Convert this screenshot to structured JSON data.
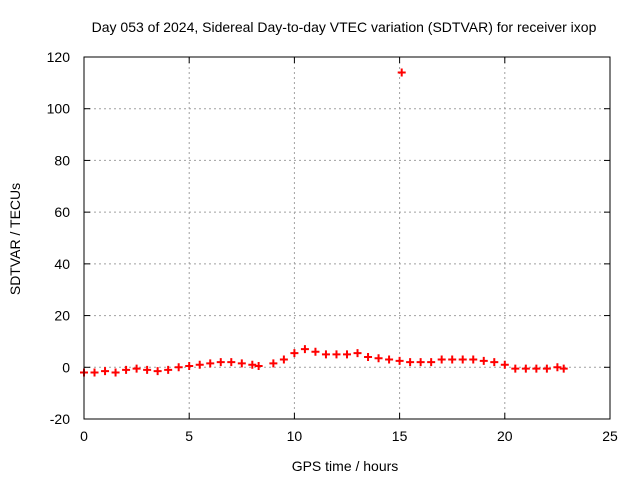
{
  "chart_data": {
    "type": "scatter",
    "title": "Day 053 of 2024, Sidereal Day-to-day VTEC variation (SDTVAR) for receiver ixop",
    "xlabel": "GPS time / hours",
    "ylabel": "SDTVAR / TECUs",
    "xlim": [
      0,
      25
    ],
    "ylim": [
      -20,
      120
    ],
    "xticks": [
      0,
      5,
      10,
      15,
      20,
      25
    ],
    "yticks": [
      -20,
      0,
      20,
      40,
      60,
      80,
      100,
      120
    ],
    "grid": true,
    "marker": "plus",
    "series": [
      {
        "name": "SDTVAR",
        "color": "#ff0000",
        "x": [
          0.0,
          0.5,
          1.0,
          1.5,
          2.0,
          2.5,
          3.0,
          3.5,
          4.0,
          4.5,
          5.0,
          5.5,
          6.0,
          6.5,
          7.0,
          7.5,
          8.0,
          8.3,
          9.0,
          9.5,
          10.0,
          10.5,
          11.0,
          11.5,
          12.0,
          12.5,
          13.0,
          13.5,
          14.0,
          14.5,
          15.0,
          15.5,
          16.0,
          16.5,
          17.0,
          17.5,
          18.0,
          18.5,
          19.0,
          19.5,
          20.0,
          20.5,
          21.0,
          21.5,
          22.0,
          22.5,
          22.8,
          15.1
        ],
        "y": [
          -2,
          -2,
          -1.5,
          -2,
          -1,
          -0.5,
          -1,
          -1.5,
          -1,
          0,
          0.5,
          1,
          1.5,
          2,
          2,
          1.5,
          1,
          0.5,
          1.5,
          3,
          5.5,
          7,
          6,
          5,
          5,
          5,
          5.5,
          4,
          3.5,
          3,
          2.5,
          2,
          2,
          2,
          3,
          3,
          3,
          3,
          2.5,
          2,
          1,
          -0.5,
          -0.5,
          -0.5,
          -0.5,
          0,
          -0.5,
          114
        ]
      }
    ]
  }
}
